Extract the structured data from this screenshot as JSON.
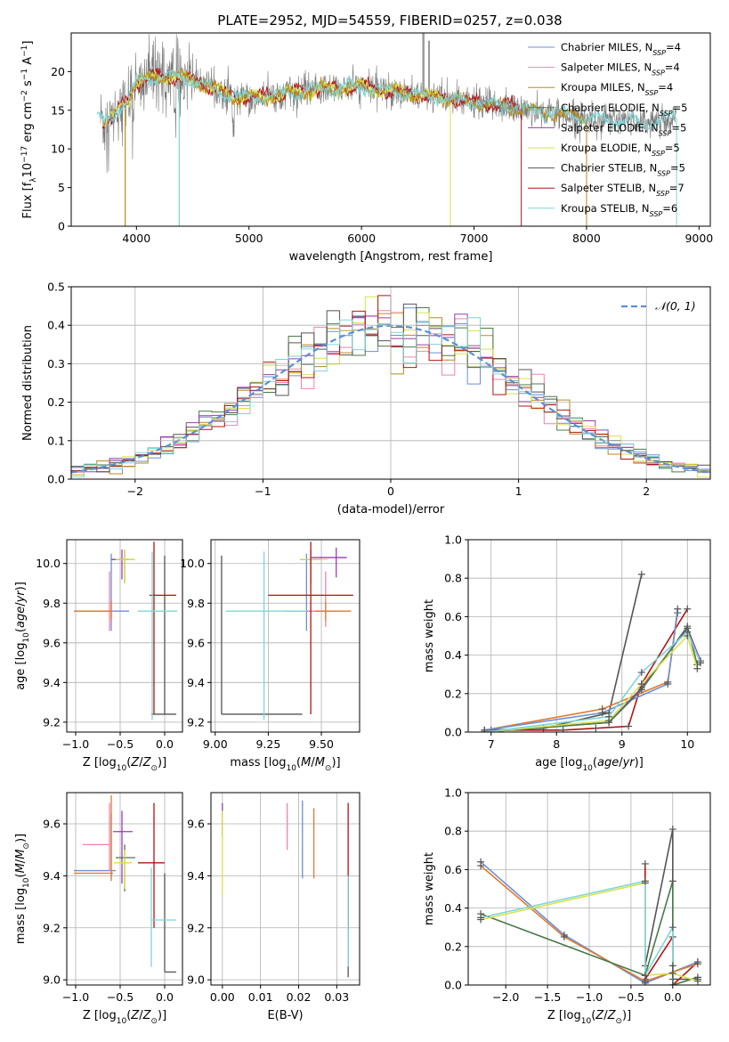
{
  "figure": {
    "title": "PLATE=2952, MJD=54559, FIBERID=0257, z=0.038"
  },
  "colors": {
    "Chabrier MILES": "#6b8fd6",
    "Salpeter MILES": "#ef82b2",
    "Kroupa MILES": "#b88a1c",
    "Chabrier ELODIE": "#4a7a4a",
    "Salpeter ELODIE": "#9a3db0",
    "Kroupa ELODIE": "#d8e24a",
    "Chabrier STELIB": "#555555",
    "Salpeter STELIB": "#b21414",
    "Kroupa STELIB": "#7fd6d6",
    "orange": "#e07a2e",
    "normal": "#5b8fd6",
    "grid": "#b0b0b0"
  },
  "chart_data": [
    {
      "id": "spectrum",
      "type": "line",
      "xlabel": "wavelength [Angstrom, rest frame]",
      "ylabel": "Flux [fλ10⁻¹⁷ erg cm⁻² s⁻¹ A⁻¹]",
      "xlim": [
        3420,
        9100
      ],
      "ylim": [
        0,
        25
      ],
      "xticks": [
        4000,
        5000,
        6000,
        7000,
        8000,
        9000
      ],
      "yticks": [
        0,
        5,
        10,
        15,
        20
      ],
      "grid": false,
      "legend": "top-right",
      "legend_entries": [
        {
          "label": "Chabrier MILES, N",
          "sub": "SSP",
          "val": "=4",
          "color": "#6b8fd6"
        },
        {
          "label": "Salpeter MILES, N",
          "sub": "SSP",
          "val": "=4",
          "color": "#ef82b2"
        },
        {
          "label": "Kroupa MILES, N",
          "sub": "SSP",
          "val": "=4",
          "color": "#b88a1c"
        },
        {
          "label": "Chabrier ELODIE, N",
          "sub": "SSP",
          "val": "=5",
          "color": "#4a7a4a"
        },
        {
          "label": "Salpeter ELODIE, N",
          "sub": "SSP",
          "val": "=5",
          "color": "#9a3db0"
        },
        {
          "label": "Kroupa ELODIE, N",
          "sub": "SSP",
          "val": "=5",
          "color": "#d8e24a"
        },
        {
          "label": "Chabrier STELIB, N",
          "sub": "SSP",
          "val": "=5",
          "color": "#555555"
        },
        {
          "label": "Salpeter STELIB, N",
          "sub": "SSP",
          "val": "=7",
          "color": "#b21414"
        },
        {
          "label": "Kroupa STELIB, N",
          "sub": "SSP",
          "val": "=6",
          "color": "#7fd6d6"
        }
      ],
      "continuum": {
        "x": [
          3700,
          3800,
          3900,
          4000,
          4200,
          4500,
          4800,
          5000,
          5500,
          6000,
          6500,
          7000,
          7500,
          8000,
          8500,
          8800
        ],
        "y": [
          13,
          14.5,
          16,
          18.5,
          19.5,
          19,
          17,
          16.5,
          17.5,
          18,
          17,
          16,
          15,
          14,
          13.5,
          14
        ]
      },
      "model_segments": [
        {
          "color": "#b21414",
          "x": [
            3700,
            7420
          ]
        },
        {
          "color": "#d8e24a",
          "x": [
            3700,
            6790
          ]
        },
        {
          "color": "#b88a1c",
          "x": [
            3900,
            8000
          ]
        },
        {
          "color": "#7fd6d6",
          "x": [
            3650,
            8800
          ]
        }
      ]
    },
    {
      "id": "residuals",
      "type": "line",
      "xlabel": "(data-model)/error",
      "ylabel": "Normed distribution",
      "xlim": [
        -2.5,
        2.5
      ],
      "ylim": [
        0,
        0.5
      ],
      "xticks": [
        -2,
        -1,
        0,
        1,
        2
      ],
      "yticks": [
        0.0,
        0.1,
        0.2,
        0.3,
        0.4,
        0.5
      ],
      "grid": true,
      "legend": "top-right",
      "legend_label": "𝒩(0, 1)",
      "bin_width": 0.1,
      "bin_start": -2.5,
      "hist_colors": [
        "#6b8fd6",
        "#ef82b2",
        "#b88a1c",
        "#4a7a4a",
        "#9a3db0",
        "#d8e24a",
        "#555555",
        "#b21414",
        "#7fd6d6"
      ]
    },
    {
      "id": "Z-age",
      "type": "errorbar",
      "xlabel": "Z [log10(Z/Z⊙)]",
      "ylabel": "age  [log10(age/yr)]",
      "xlim": [
        -1.1,
        0.2
      ],
      "ylim": [
        9.15,
        10.12
      ],
      "xticks": [
        -1.0,
        -0.5,
        0.0
      ],
      "yticks": [
        9.2,
        9.4,
        9.6,
        9.8,
        10.0
      ],
      "points": [
        {
          "color": "#6b8fd6",
          "x": -0.6,
          "xerr": [
            0.4,
            0.2
          ],
          "y": 9.76,
          "yerr": [
            0.1,
            0.29
          ]
        },
        {
          "color": "#ef82b2",
          "x": -0.62,
          "xerr": [
            0.4,
            0.0
          ],
          "y": 9.76,
          "yerr": [
            0.1,
            0.2
          ]
        },
        {
          "color": "#e07a2e",
          "x": -0.6,
          "xerr": [
            0.42,
            0.0
          ],
          "y": 9.76,
          "yerr": [
            0.05,
            0.05
          ]
        },
        {
          "color": "#4a7a4a",
          "x": -0.45,
          "xerr": [
            0.15,
            0.1
          ],
          "y": 10.02,
          "yerr": [
            0.12,
            0.05
          ]
        },
        {
          "color": "#9a3db0",
          "x": -0.48,
          "xerr": [
            0.12,
            0.08
          ],
          "y": 10.02,
          "yerr": [
            0.1,
            0.05
          ]
        },
        {
          "color": "#d8e24a",
          "x": -0.45,
          "xerr": [
            0.1,
            0.12
          ],
          "y": 10.02,
          "yerr": [
            0.12,
            0.05
          ]
        },
        {
          "color": "#555555",
          "x": 0.0,
          "xerr": [
            0.15,
            0.13
          ],
          "y": 9.24,
          "yerr": [
            0.0,
            0.8
          ]
        },
        {
          "color": "#b21414",
          "x": -0.12,
          "xerr": [
            0.05,
            0.25
          ],
          "y": 9.84,
          "yerr": [
            0.6,
            0.27
          ]
        },
        {
          "color": "#7fd6d6",
          "x": -0.14,
          "xerr": [
            0.16,
            0.28
          ],
          "y": 9.76,
          "yerr": [
            0.55,
            0.3
          ]
        }
      ]
    },
    {
      "id": "mass-age",
      "type": "errorbar",
      "xlabel": "mass [log10(M/M⊙)]",
      "ylabel": "",
      "xlim": [
        8.98,
        9.68
      ],
      "ylim": [
        9.15,
        10.12
      ],
      "xticks": [
        9.0,
        9.25,
        9.5
      ],
      "yticks": [
        9.2,
        9.4,
        9.6,
        9.8,
        10.0
      ],
      "points": [
        {
          "color": "#6b8fd6",
          "x": 9.43,
          "xerr": [
            0.1,
            0.1
          ],
          "y": 9.76,
          "yerr": [
            0.1,
            0.29
          ]
        },
        {
          "color": "#ef82b2",
          "x": 9.52,
          "xerr": [
            0.1,
            0.05
          ],
          "y": 9.76,
          "yerr": [
            0.08,
            0.2
          ]
        },
        {
          "color": "#e07a2e",
          "x": 9.52,
          "xerr": [
            0.05,
            0.12
          ],
          "y": 9.76,
          "yerr": [
            0.05,
            0.05
          ]
        },
        {
          "color": "#4a7a4a",
          "x": 9.45,
          "xerr": [
            0.05,
            0.05
          ],
          "y": 10.02,
          "yerr": [
            0.12,
            0.05
          ]
        },
        {
          "color": "#9a3db0",
          "x": 9.57,
          "xerr": [
            0.12,
            0.05
          ],
          "y": 10.03,
          "yerr": [
            0.1,
            0.05
          ]
        },
        {
          "color": "#d8e24a",
          "x": 9.45,
          "xerr": [
            0.05,
            0.08
          ],
          "y": 10.02,
          "yerr": [
            0.1,
            0.05
          ]
        },
        {
          "color": "#555555",
          "x": 9.03,
          "xerr": [
            0.0,
            0.38
          ],
          "y": 9.24,
          "yerr": [
            0.0,
            0.8
          ]
        },
        {
          "color": "#b21414",
          "x": 9.45,
          "xerr": [
            0.2,
            0.2
          ],
          "y": 9.84,
          "yerr": [
            0.6,
            0.27
          ]
        },
        {
          "color": "#7fd6d6",
          "x": 9.23,
          "xerr": [
            0.18,
            0.2
          ],
          "y": 9.76,
          "yerr": [
            0.55,
            0.3
          ]
        }
      ]
    },
    {
      "id": "age-weight",
      "type": "line",
      "xlabel": "age  [log10(age/yr)]",
      "ylabel": "mass weight",
      "xlim": [
        6.65,
        10.35
      ],
      "ylim": [
        0.0,
        1.0
      ],
      "xticks": [
        7,
        8,
        9,
        10
      ],
      "yticks": [
        0.0,
        0.2,
        0.4,
        0.6,
        0.8,
        1.0
      ],
      "grid": true,
      "series": [
        {
          "color": "#555555",
          "x": [
            6.9,
            7.8,
            8.8,
            9.3
          ],
          "y": [
            0.01,
            0.02,
            0.1,
            0.82
          ]
        },
        {
          "color": "#b21414",
          "x": [
            7.0,
            8.1,
            8.6,
            9.1,
            9.3,
            10.0
          ],
          "y": [
            0.01,
            0.01,
            0.02,
            0.03,
            0.25,
            0.64
          ]
        },
        {
          "color": "#e07a2e",
          "x": [
            6.9,
            8.7,
            9.7,
            9.85
          ],
          "y": [
            0.01,
            0.12,
            0.26,
            0.62
          ]
        },
        {
          "color": "#6b8fd6",
          "x": [
            6.9,
            8.7,
            9.7,
            9.85
          ],
          "y": [
            0.01,
            0.1,
            0.25,
            0.64
          ]
        },
        {
          "color": "#9a3db0",
          "x": [
            6.9,
            8.8,
            9.3,
            10.0,
            10.2
          ],
          "y": [
            0.0,
            0.05,
            0.23,
            0.54,
            0.37
          ]
        },
        {
          "color": "#4a7a4a",
          "x": [
            6.9,
            8.8,
            9.3,
            10.0,
            10.15
          ],
          "y": [
            0.0,
            0.05,
            0.22,
            0.55,
            0.35
          ]
        },
        {
          "color": "#d8e24a",
          "x": [
            6.9,
            8.8,
            9.3,
            10.0,
            10.15
          ],
          "y": [
            0.0,
            0.06,
            0.25,
            0.5,
            0.33
          ]
        },
        {
          "color": "#7fd6d6",
          "x": [
            6.9,
            8.8,
            9.3,
            10.0,
            10.2
          ],
          "y": [
            0.0,
            0.08,
            0.31,
            0.52,
            0.36
          ]
        }
      ]
    },
    {
      "id": "Z-mass",
      "type": "errorbar",
      "xlabel": "Z [log10(Z/Z⊙)]",
      "ylabel": "mass [log10(M/M⊙)]",
      "xlim": [
        -1.1,
        0.2
      ],
      "ylim": [
        8.98,
        9.72
      ],
      "xticks": [
        -1.0,
        -0.5,
        0.0
      ],
      "yticks": [
        9.0,
        9.2,
        9.4,
        9.6
      ],
      "points": [
        {
          "color": "#6b8fd6",
          "x": -0.6,
          "xerr": [
            0.42,
            0.05
          ],
          "y": 9.42,
          "yerr": [
            0.04,
            0.22
          ]
        },
        {
          "color": "#ef82b2",
          "x": -0.62,
          "xerr": [
            0.3,
            0.0
          ],
          "y": 9.52,
          "yerr": [
            0.1,
            0.16
          ]
        },
        {
          "color": "#e07a2e",
          "x": -0.6,
          "xerr": [
            0.42,
            0.02
          ],
          "y": 9.41,
          "yerr": [
            0.02,
            0.3
          ]
        },
        {
          "color": "#4a7a4a",
          "x": -0.45,
          "xerr": [
            0.1,
            0.12
          ],
          "y": 9.47,
          "yerr": [
            0.13,
            0.05
          ]
        },
        {
          "color": "#9a3db0",
          "x": -0.48,
          "xerr": [
            0.1,
            0.12
          ],
          "y": 9.57,
          "yerr": [
            0.2,
            0.08
          ]
        },
        {
          "color": "#d8e24a",
          "x": -0.45,
          "xerr": [
            0.12,
            0.08
          ],
          "y": 9.45,
          "yerr": [
            0.1,
            0.05
          ]
        },
        {
          "color": "#555555",
          "x": 0.0,
          "xerr": [
            0.0,
            0.13
          ],
          "y": 9.03,
          "yerr": [
            0.0,
            0.38
          ]
        },
        {
          "color": "#b21414",
          "x": -0.12,
          "xerr": [
            0.18,
            0.12
          ],
          "y": 9.45,
          "yerr": [
            0.25,
            0.23
          ]
        },
        {
          "color": "#7fd6d6",
          "x": -0.15,
          "xerr": [
            0.0,
            0.28
          ],
          "y": 9.23,
          "yerr": [
            0.18,
            0.2
          ]
        }
      ]
    },
    {
      "id": "ebv-mass",
      "type": "errorbar",
      "xlabel": "E(B-V)",
      "ylabel": "",
      "xlim": [
        -0.003,
        0.036
      ],
      "ylim": [
        8.98,
        9.72
      ],
      "xticks": [
        0.0,
        0.01,
        0.02,
        0.03
      ],
      "yticks": [
        9.0,
        9.2,
        9.4,
        9.6
      ],
      "points": [
        {
          "color": "#6b8fd6",
          "x": 0.021,
          "y": 9.49,
          "yerr": [
            0.1,
            0.2
          ]
        },
        {
          "color": "#ef82b2",
          "x": 0.017,
          "y": 9.58,
          "yerr": [
            0.08,
            0.1
          ]
        },
        {
          "color": "#e07a2e",
          "x": 0.024,
          "y": 9.52,
          "yerr": [
            0.13,
            0.14
          ]
        },
        {
          "color": "#9a3db0",
          "x": 0.0,
          "y": 9.6,
          "yerr": [
            0.05,
            0.08
          ]
        },
        {
          "color": "#d8e24a",
          "x": 0.0,
          "y": 9.45,
          "yerr": [
            0.12,
            0.2
          ]
        },
        {
          "color": "#555555",
          "x": 0.033,
          "y": 9.03,
          "yerr": [
            0.02,
            0.37
          ]
        },
        {
          "color": "#b21414",
          "x": 0.033,
          "y": 9.45,
          "yerr": [
            0.25,
            0.23
          ]
        },
        {
          "color": "#7fd6d6",
          "x": 0.033,
          "y": 9.23,
          "yerr": [
            0.18,
            0.17
          ]
        }
      ]
    },
    {
      "id": "Z-weight",
      "type": "line",
      "xlabel": "Z [log10(Z/Z⊙)]",
      "ylabel": "mass weight",
      "xlim": [
        -2.45,
        0.45
      ],
      "ylim": [
        0.0,
        1.0
      ],
      "xticks": [
        -2.0,
        -1.5,
        -1.0,
        -0.5,
        0.0
      ],
      "yticks": [
        0.0,
        0.2,
        0.4,
        0.6,
        0.8,
        1.0
      ],
      "grid": true,
      "series": [
        {
          "color": "#555555",
          "x": [
            -0.33,
            0.0,
            0.0,
            0.3
          ],
          "y": [
            0.1,
            0.81,
            0.03,
            0.03
          ]
        },
        {
          "color": "#b21414",
          "x": [
            -0.33,
            -0.33,
            0.0,
            0.0,
            0.3
          ],
          "y": [
            0.63,
            0.03,
            0.25,
            0.0,
            0.12
          ]
        },
        {
          "color": "#6b8fd6",
          "x": [
            -2.3,
            -1.3,
            -0.33,
            0.3
          ],
          "y": [
            0.64,
            0.26,
            0.01,
            0.12
          ]
        },
        {
          "color": "#e07a2e",
          "x": [
            -2.3,
            -1.3,
            -0.33,
            0.3
          ],
          "y": [
            0.62,
            0.25,
            0.02,
            0.11
          ]
        },
        {
          "color": "#4a7a4a",
          "x": [
            -2.3,
            -0.33,
            0.0,
            0.0,
            0.3
          ],
          "y": [
            0.37,
            0.05,
            0.54,
            0.0,
            0.04
          ]
        },
        {
          "color": "#d8e24a",
          "x": [
            -2.3,
            -0.33,
            -0.33,
            0.0,
            0.3
          ],
          "y": [
            0.34,
            0.53,
            0.05,
            0.06,
            0.02
          ]
        },
        {
          "color": "#7fd6d6",
          "x": [
            -2.3,
            -0.33,
            -0.33,
            0.0,
            0.0
          ],
          "y": [
            0.35,
            0.54,
            0.05,
            0.3,
            0.1
          ]
        }
      ]
    }
  ]
}
